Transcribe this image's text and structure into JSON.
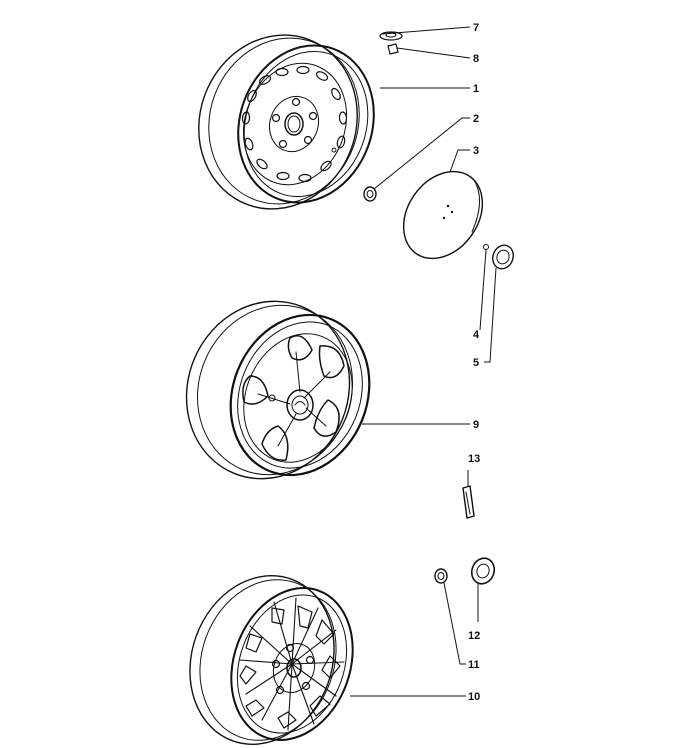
{
  "callouts": {
    "c1": "1",
    "c2": "2",
    "c3": "3",
    "c4": "4",
    "c5": "5",
    "c7": "7",
    "c8": "8",
    "c9": "9",
    "c10": "10",
    "c11": "11",
    "c12": "12",
    "c13": "13"
  },
  "colors": {
    "ink": "#111111",
    "background": "#ffffff"
  }
}
